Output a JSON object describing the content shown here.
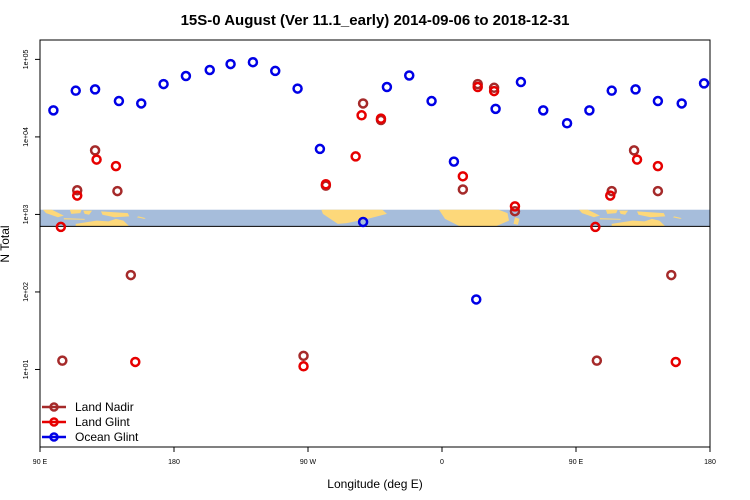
{
  "chart_data": {
    "type": "scatter",
    "title": "15S-0 August (Ver 11.1_early)   2014-09-06 to 2018-12-31",
    "xlabel": "Longitude (deg E)",
    "ylabel": "N Total",
    "x_axis_note": "longitude axis spans 90 E to 180 E wrapping once around the globe (450 degrees)",
    "xlim": [
      90,
      540
    ],
    "ylim_log10": [
      0,
      5.25
    ],
    "x_ticks": [
      {
        "value": 90,
        "label": "90 E"
      },
      {
        "value": 180,
        "label": "180"
      },
      {
        "value": 270,
        "label": "90 W"
      },
      {
        "value": 360,
        "label": "0"
      },
      {
        "value": 450,
        "label": "90 E"
      },
      {
        "value": 540,
        "label": "180"
      }
    ],
    "y_ticks": [
      {
        "value": 10,
        "label": "1e+01"
      },
      {
        "value": 100,
        "label": "1e+02"
      },
      {
        "value": 1000,
        "label": "1e+03"
      },
      {
        "value": 10000,
        "label": "1e+04"
      },
      {
        "value": 100000,
        "label": "1e+05"
      }
    ],
    "map_band": {
      "ymin": 700,
      "ymax": 1150,
      "ocean_color": "#a6bddb",
      "land_color": "#fdd87a"
    },
    "reference_line_y": 700,
    "series": [
      {
        "name": "Land Nadir",
        "color": "#a52a2a",
        "points": [
          [
            105,
            13
          ],
          [
            115,
            2050
          ],
          [
            127,
            6700
          ],
          [
            142,
            2000
          ],
          [
            151,
            165
          ],
          [
            267,
            15
          ],
          [
            282,
            2350
          ],
          [
            307,
            27000
          ],
          [
            319,
            16500
          ],
          [
            374,
            2100
          ],
          [
            384,
            48000
          ],
          [
            395,
            43000
          ],
          [
            409,
            1100
          ],
          [
            464,
            13
          ],
          [
            474,
            2000
          ],
          [
            489,
            6700
          ],
          [
            505,
            2000
          ],
          [
            514,
            165
          ]
        ]
      },
      {
        "name": "Land Glint",
        "color": "#e60000",
        "points": [
          [
            104,
            690
          ],
          [
            115,
            1750
          ],
          [
            128,
            5100
          ],
          [
            141,
            4200
          ],
          [
            154,
            12.5
          ],
          [
            267,
            11
          ],
          [
            282,
            2450
          ],
          [
            302,
            5600
          ],
          [
            306,
            19000
          ],
          [
            319,
            17200
          ],
          [
            374,
            3100
          ],
          [
            384,
            44000
          ],
          [
            395,
            39000
          ],
          [
            409,
            1270
          ],
          [
            463,
            690
          ],
          [
            473,
            1750
          ],
          [
            491,
            5100
          ],
          [
            505,
            4200
          ],
          [
            517,
            12.5
          ]
        ]
      },
      {
        "name": "Ocean Glint",
        "color": "#0000e6",
        "points": [
          [
            99,
            22000
          ],
          [
            114,
            39500
          ],
          [
            127,
            41000
          ],
          [
            143,
            29000
          ],
          [
            158,
            27000
          ],
          [
            173,
            48000
          ],
          [
            188,
            61000
          ],
          [
            204,
            73000
          ],
          [
            218,
            87000
          ],
          [
            233,
            92000
          ],
          [
            248,
            71000
          ],
          [
            263,
            42000
          ],
          [
            278,
            7000
          ],
          [
            307,
            800
          ],
          [
            323,
            44000
          ],
          [
            338,
            62000
          ],
          [
            353,
            29000
          ],
          [
            368,
            4800
          ],
          [
            383,
            80
          ],
          [
            396,
            23000
          ],
          [
            413,
            51000
          ],
          [
            428,
            22000
          ],
          [
            444,
            15000
          ],
          [
            459,
            22000
          ],
          [
            474,
            39500
          ],
          [
            490,
            41000
          ],
          [
            505,
            29000
          ],
          [
            521,
            27000
          ],
          [
            536,
            49000
          ]
        ]
      }
    ],
    "legend": {
      "position": "bottom-left",
      "entries": [
        "Land Nadir",
        "Land Glint",
        "Ocean Glint"
      ]
    }
  }
}
